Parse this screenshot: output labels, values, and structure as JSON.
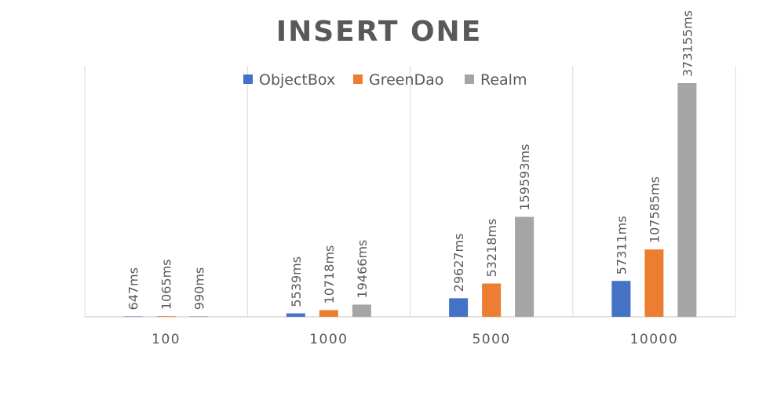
{
  "chart_data": {
    "type": "bar",
    "title": "INSERT ONE",
    "xlabel": "",
    "ylabel": "",
    "categories": [
      "100",
      "1000",
      "5000",
      "10000"
    ],
    "series": [
      {
        "name": "ObjectBox",
        "color": "#4472C4",
        "values": [
          647,
          5539,
          29627,
          57311
        ],
        "labels": [
          "647ms",
          "5539ms",
          "29627ms",
          "57311ms"
        ]
      },
      {
        "name": "GreenDao",
        "color": "#ED7D31",
        "values": [
          1065,
          10718,
          53218,
          107585
        ],
        "labels": [
          "1065ms",
          "10718ms",
          "53218ms",
          "107585ms"
        ]
      },
      {
        "name": "Realm",
        "color": "#A5A5A5",
        "values": [
          990,
          19466,
          159593,
          373155
        ],
        "labels": [
          "990ms",
          "19466ms",
          "159593ms",
          "373155ms"
        ]
      }
    ],
    "ylim": [
      0,
      373155
    ],
    "grid": "vertical",
    "legend": "top"
  }
}
